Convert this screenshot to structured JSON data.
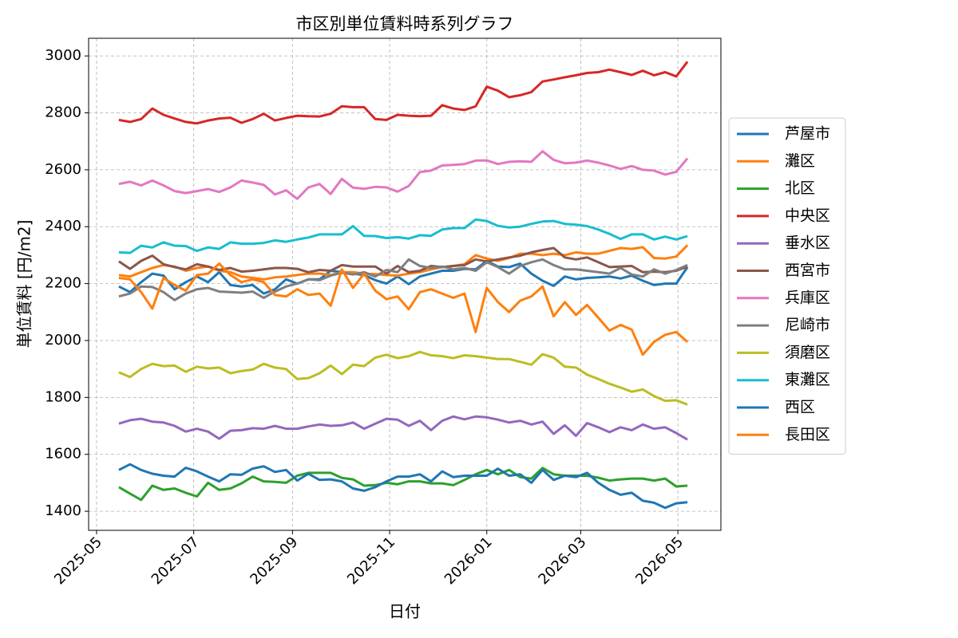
{
  "chart_data": {
    "type": "line",
    "title": "市区別単位賃料時系列グラフ",
    "x_label": "日付",
    "y_label": "単位賃料 [円/m2]",
    "x": [
      "2025-05-15",
      "2025-05-22",
      "2025-05-29",
      "2025-06-05",
      "2025-06-12",
      "2025-06-19",
      "2025-06-26",
      "2025-07-03",
      "2025-07-10",
      "2025-07-17",
      "2025-07-24",
      "2025-07-31",
      "2025-08-07",
      "2025-08-14",
      "2025-08-21",
      "2025-08-28",
      "2025-09-04",
      "2025-09-11",
      "2025-09-18",
      "2025-09-25",
      "2025-10-02",
      "2025-10-09",
      "2025-10-16",
      "2025-10-23",
      "2025-10-30",
      "2025-11-06",
      "2025-11-13",
      "2025-11-20",
      "2025-11-27",
      "2025-12-04",
      "2025-12-11",
      "2025-12-18",
      "2025-12-25",
      "2026-01-01",
      "2026-01-08",
      "2026-01-15",
      "2026-01-22",
      "2026-01-29",
      "2026-02-05",
      "2026-02-12",
      "2026-02-19",
      "2026-02-26",
      "2026-03-05",
      "2026-03-12",
      "2026-03-19",
      "2026-03-26",
      "2026-04-02",
      "2026-04-09",
      "2026-04-16",
      "2026-04-23",
      "2026-04-30",
      "2026-05-07"
    ],
    "xlim": [
      "2025-04-26",
      "2026-05-28"
    ],
    "xticks": [
      {
        "value": "2025-05-01",
        "label": "2025-05"
      },
      {
        "value": "2025-07-01",
        "label": "2025-07"
      },
      {
        "value": "2025-09-01",
        "label": "2025-09"
      },
      {
        "value": "2025-11-01",
        "label": "2025-11"
      },
      {
        "value": "2026-01-01",
        "label": "2026-01"
      },
      {
        "value": "2026-03-01",
        "label": "2026-03"
      },
      {
        "value": "2026-05-01",
        "label": "2026-05"
      }
    ],
    "ylim": [
      1333,
      3062
    ],
    "yticks": [
      1400,
      1600,
      1800,
      2000,
      2200,
      2400,
      2600,
      2800,
      3000
    ],
    "grid": true,
    "legend": "right",
    "series": [
      {
        "name": "芦屋市",
        "color": "#1f77b4",
        "values": [
          2190,
          2170,
          2205,
          2235,
          2228,
          2180,
          2205,
          2225,
          2205,
          2240,
          2195,
          2190,
          2195,
          2165,
          2180,
          2215,
          2200,
          2215,
          2215,
          2245,
          2240,
          2235,
          2230,
          2212,
          2200,
          2225,
          2198,
          2225,
          2235,
          2245,
          2245,
          2252,
          2250,
          2280,
          2260,
          2258,
          2270,
          2235,
          2210,
          2192,
          2225,
          2215,
          2220,
          2222,
          2225,
          2218,
          2228,
          2210,
          2195,
          2200,
          2200,
          2258
        ]
      },
      {
        "name": "灘区",
        "color": "#ff7f0e",
        "values": [
          2230,
          2225,
          2240,
          2255,
          2265,
          2260,
          2245,
          2255,
          2260,
          2245,
          2240,
          2225,
          2220,
          2215,
          2222,
          2225,
          2230,
          2235,
          2235,
          2230,
          2240,
          2240,
          2235,
          2233,
          2230,
          2228,
          2235,
          2240,
          2250,
          2258,
          2262,
          2268,
          2300,
          2288,
          2280,
          2290,
          2305,
          2305,
          2300,
          2305,
          2300,
          2310,
          2305,
          2305,
          2315,
          2325,
          2322,
          2328,
          2290,
          2288,
          2295,
          2335
        ]
      },
      {
        "name": "北区",
        "color": "#2ca02c",
        "values": [
          1485,
          1462,
          1440,
          1490,
          1475,
          1480,
          1465,
          1452,
          1500,
          1475,
          1480,
          1498,
          1522,
          1505,
          1503,
          1500,
          1525,
          1535,
          1535,
          1535,
          1517,
          1512,
          1490,
          1492,
          1500,
          1495,
          1505,
          1505,
          1498,
          1498,
          1492,
          1510,
          1530,
          1545,
          1530,
          1545,
          1520,
          1515,
          1552,
          1530,
          1525,
          1525,
          1525,
          1518,
          1508,
          1512,
          1515,
          1515,
          1508,
          1515,
          1487,
          1490
        ]
      },
      {
        "name": "中央区",
        "color": "#d62728",
        "values": [
          2775,
          2768,
          2778,
          2815,
          2793,
          2780,
          2768,
          2763,
          2773,
          2780,
          2783,
          2765,
          2778,
          2797,
          2773,
          2782,
          2790,
          2788,
          2787,
          2797,
          2823,
          2820,
          2820,
          2778,
          2775,
          2793,
          2790,
          2788,
          2790,
          2827,
          2815,
          2810,
          2823,
          2892,
          2878,
          2855,
          2862,
          2873,
          2910,
          2917,
          2925,
          2932,
          2940,
          2943,
          2952,
          2943,
          2933,
          2948,
          2932,
          2943,
          2928,
          2980
        ]
      },
      {
        "name": "垂水区",
        "color": "#9467bd",
        "values": [
          1708,
          1720,
          1725,
          1715,
          1712,
          1700,
          1680,
          1690,
          1680,
          1655,
          1683,
          1685,
          1692,
          1690,
          1700,
          1690,
          1690,
          1698,
          1705,
          1700,
          1702,
          1712,
          1690,
          1708,
          1725,
          1722,
          1700,
          1718,
          1685,
          1718,
          1733,
          1723,
          1733,
          1730,
          1722,
          1712,
          1718,
          1705,
          1715,
          1672,
          1702,
          1665,
          1710,
          1695,
          1678,
          1695,
          1685,
          1705,
          1690,
          1695,
          1675,
          1652
        ]
      },
      {
        "name": "西宮市",
        "color": "#8c564b",
        "values": [
          2278,
          2252,
          2280,
          2298,
          2268,
          2258,
          2250,
          2268,
          2260,
          2248,
          2255,
          2242,
          2245,
          2250,
          2255,
          2255,
          2252,
          2240,
          2248,
          2245,
          2265,
          2260,
          2260,
          2260,
          2235,
          2262,
          2240,
          2245,
          2262,
          2258,
          2262,
          2265,
          2285,
          2278,
          2285,
          2292,
          2298,
          2310,
          2318,
          2325,
          2292,
          2285,
          2292,
          2275,
          2258,
          2260,
          2262,
          2240,
          2242,
          2240,
          2245,
          2260
        ]
      },
      {
        "name": "兵庫区",
        "color": "#e377c2",
        "values": [
          2550,
          2558,
          2545,
          2562,
          2545,
          2525,
          2518,
          2525,
          2532,
          2522,
          2538,
          2562,
          2555,
          2547,
          2513,
          2528,
          2498,
          2538,
          2550,
          2515,
          2568,
          2537,
          2533,
          2540,
          2538,
          2523,
          2543,
          2592,
          2597,
          2615,
          2617,
          2620,
          2632,
          2633,
          2620,
          2628,
          2630,
          2628,
          2665,
          2635,
          2623,
          2625,
          2632,
          2625,
          2615,
          2603,
          2613,
          2600,
          2597,
          2583,
          2593,
          2640
        ]
      },
      {
        "name": "尼崎市",
        "color": "#7f7f7f",
        "values": [
          2155,
          2165,
          2190,
          2188,
          2170,
          2142,
          2165,
          2180,
          2185,
          2172,
          2170,
          2168,
          2172,
          2150,
          2172,
          2190,
          2200,
          2215,
          2212,
          2228,
          2238,
          2232,
          2240,
          2225,
          2248,
          2240,
          2285,
          2262,
          2255,
          2260,
          2250,
          2255,
          2245,
          2275,
          2258,
          2235,
          2262,
          2275,
          2285,
          2265,
          2250,
          2250,
          2245,
          2240,
          2235,
          2255,
          2232,
          2225,
          2250,
          2235,
          2248,
          2265
        ]
      },
      {
        "name": "須磨区",
        "color": "#bcbd22",
        "values": [
          1888,
          1872,
          1900,
          1918,
          1910,
          1912,
          1890,
          1908,
          1902,
          1905,
          1885,
          1893,
          1898,
          1918,
          1905,
          1900,
          1865,
          1868,
          1885,
          1912,
          1882,
          1915,
          1910,
          1940,
          1950,
          1938,
          1945,
          1960,
          1948,
          1945,
          1938,
          1948,
          1945,
          1940,
          1935,
          1935,
          1925,
          1915,
          1952,
          1940,
          1908,
          1905,
          1880,
          1865,
          1848,
          1835,
          1820,
          1828,
          1805,
          1788,
          1790,
          1775
        ]
      },
      {
        "name": "東灘区",
        "color": "#17becf",
        "values": [
          2310,
          2308,
          2333,
          2327,
          2345,
          2333,
          2332,
          2315,
          2327,
          2322,
          2345,
          2340,
          2340,
          2343,
          2352,
          2347,
          2355,
          2362,
          2373,
          2373,
          2373,
          2402,
          2368,
          2367,
          2360,
          2363,
          2358,
          2370,
          2368,
          2390,
          2395,
          2395,
          2425,
          2420,
          2403,
          2397,
          2400,
          2410,
          2418,
          2420,
          2410,
          2407,
          2402,
          2390,
          2375,
          2357,
          2373,
          2373,
          2355,
          2365,
          2355,
          2367
        ]
      },
      {
        "name": "西区",
        "color": "#1f77b4",
        "values": [
          1545,
          1565,
          1545,
          1532,
          1525,
          1522,
          1553,
          1540,
          1522,
          1505,
          1530,
          1528,
          1550,
          1558,
          1538,
          1545,
          1508,
          1532,
          1510,
          1512,
          1505,
          1480,
          1472,
          1485,
          1505,
          1522,
          1522,
          1530,
          1505,
          1540,
          1520,
          1525,
          1525,
          1525,
          1550,
          1525,
          1530,
          1500,
          1545,
          1510,
          1525,
          1520,
          1535,
          1500,
          1475,
          1458,
          1465,
          1437,
          1430,
          1412,
          1428,
          1432
        ]
      },
      {
        "name": "長田区",
        "color": "#ff7f0e",
        "values": [
          2220,
          2215,
          2170,
          2112,
          2220,
          2195,
          2175,
          2230,
          2235,
          2270,
          2230,
          2205,
          2215,
          2205,
          2160,
          2155,
          2180,
          2160,
          2165,
          2122,
          2250,
          2185,
          2235,
          2175,
          2145,
          2155,
          2110,
          2170,
          2180,
          2165,
          2150,
          2165,
          2030,
          2185,
          2135,
          2100,
          2140,
          2155,
          2190,
          2085,
          2135,
          2090,
          2125,
          2080,
          2035,
          2055,
          2038,
          1950,
          1995,
          2020,
          2030,
          1995
        ]
      }
    ]
  }
}
